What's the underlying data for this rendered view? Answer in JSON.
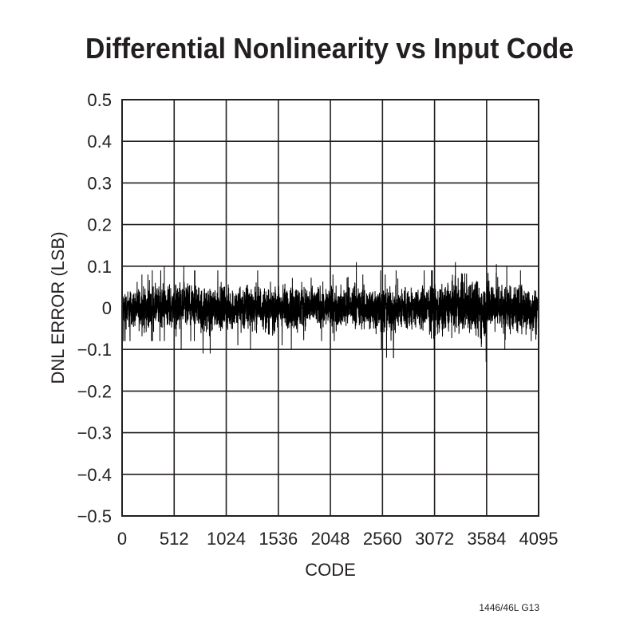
{
  "chart_data": {
    "type": "line",
    "title": "Differential Nonlinearity vs Input Code",
    "xlabel": "CODE",
    "ylabel": "DNL ERROR (LSB)",
    "xlim": [
      0,
      4095
    ],
    "ylim": [
      -0.5,
      0.5
    ],
    "x_ticks": [
      0,
      512,
      1024,
      1536,
      2048,
      2560,
      3072,
      3584,
      4095
    ],
    "x_tick_labels": [
      "0",
      "512",
      "1024",
      "1536",
      "2048",
      "2560",
      "3072",
      "3584",
      "4095"
    ],
    "y_ticks": [
      0.5,
      0.4,
      0.3,
      0.2,
      0.1,
      0,
      -0.1,
      -0.2,
      -0.3,
      -0.4,
      -0.5
    ],
    "y_tick_labels": [
      "0.5",
      "0.4",
      "0.3",
      "0.2",
      "0.1",
      "0",
      "−0.1",
      "−0.2",
      "−0.3",
      "−0.4",
      "−0.5"
    ],
    "grid": true,
    "line_color": "#000000",
    "series": [
      {
        "description_of_values": "DNL envelope per 128-code bin (max and min, LSB)",
        "bin_start_codes": [
          0,
          128,
          256,
          384,
          512,
          640,
          768,
          896,
          1024,
          1152,
          1280,
          1408,
          1536,
          1664,
          1792,
          1920,
          2048,
          2176,
          2304,
          2432,
          2560,
          2688,
          2816,
          2944,
          3072,
          3200,
          3328,
          3456,
          3584,
          3712,
          3840,
          3968
        ],
        "max": [
          0.07,
          0.08,
          0.09,
          0.1,
          0.1,
          0.09,
          0.08,
          0.09,
          0.08,
          0.1,
          0.09,
          0.08,
          0.09,
          0.1,
          0.09,
          0.09,
          0.08,
          0.11,
          0.08,
          0.09,
          0.08,
          0.09,
          0.08,
          0.09,
          0.09,
          0.11,
          0.14,
          0.1,
          0.14,
          0.1,
          0.09,
          0.08
        ],
        "min": [
          -0.08,
          -0.09,
          -0.08,
          -0.08,
          -0.1,
          -0.08,
          -0.11,
          -0.08,
          -0.09,
          -0.1,
          -0.08,
          -0.1,
          -0.09,
          -0.1,
          -0.08,
          -0.08,
          -0.08,
          -0.07,
          -0.09,
          -0.1,
          -0.12,
          -0.1,
          -0.09,
          -0.1,
          -0.12,
          -0.09,
          -0.1,
          -0.13,
          -0.08,
          -0.1,
          -0.1,
          -0.12
        ]
      }
    ]
  },
  "footer": "1446/46L G13"
}
